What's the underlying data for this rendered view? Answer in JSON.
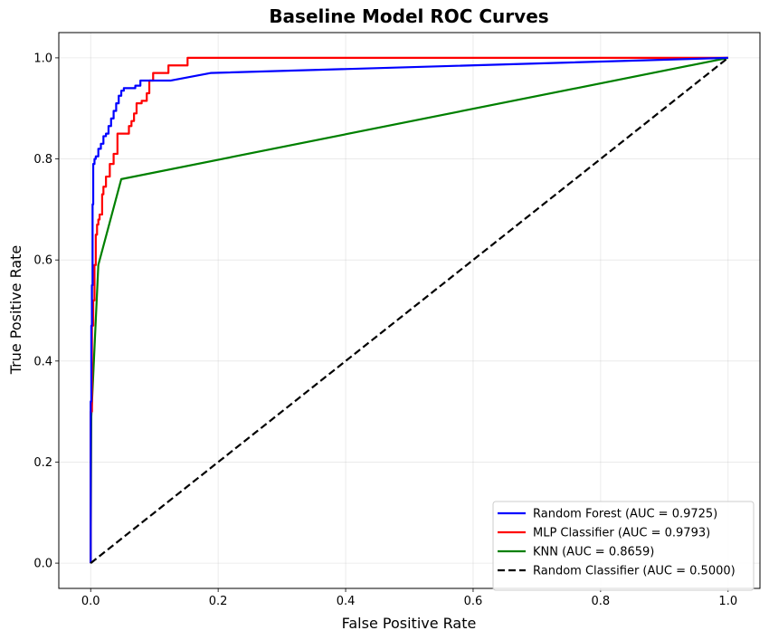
{
  "chart_data": {
    "type": "line",
    "title": "Baseline Model ROC Curves",
    "xlabel": "False Positive Rate",
    "ylabel": "True Positive Rate",
    "xlim": [
      -0.05,
      1.05
    ],
    "ylim": [
      -0.05,
      1.05
    ],
    "xticks": [
      "0.0",
      "0.2",
      "0.4",
      "0.6",
      "0.8",
      "1.0"
    ],
    "yticks": [
      "0.0",
      "0.2",
      "0.4",
      "0.6",
      "0.8",
      "1.0"
    ],
    "grid": true,
    "legend_position": "lower-right",
    "series": [
      {
        "name": "Random Forest (AUC = 0.9725)",
        "color": "#0000ff",
        "dash": "solid",
        "x": [
          0,
          0,
          0.001,
          0.001,
          0.002,
          0.002,
          0.003,
          0.003,
          0.004,
          0.004,
          0.006,
          0.006,
          0.008,
          0.008,
          0.012,
          0.012,
          0.016,
          0.016,
          0.02,
          0.02,
          0.024,
          0.024,
          0.028,
          0.028,
          0.032,
          0.032,
          0.036,
          0.036,
          0.04,
          0.04,
          0.044,
          0.044,
          0.048,
          0.048,
          0.052,
          0.052,
          0.07,
          0.07,
          0.078,
          0.078,
          0.095,
          0.095,
          0.125,
          0.188,
          1.0
        ],
        "y": [
          0,
          0.32,
          0.32,
          0.47,
          0.47,
          0.55,
          0.55,
          0.71,
          0.71,
          0.79,
          0.79,
          0.8,
          0.8,
          0.805,
          0.805,
          0.82,
          0.82,
          0.83,
          0.83,
          0.845,
          0.845,
          0.85,
          0.85,
          0.865,
          0.865,
          0.88,
          0.88,
          0.895,
          0.895,
          0.91,
          0.91,
          0.925,
          0.925,
          0.935,
          0.935,
          0.94,
          0.94,
          0.945,
          0.945,
          0.955,
          0.955,
          0.955,
          0.955,
          0.97,
          1.0
        ]
      },
      {
        "name": "MLP Classifier (AUC = 0.9793)",
        "color": "#ff0000",
        "dash": "solid",
        "x": [
          0,
          0,
          0.002,
          0.002,
          0.004,
          0.004,
          0.006,
          0.006,
          0.008,
          0.008,
          0.01,
          0.01,
          0.012,
          0.012,
          0.014,
          0.014,
          0.018,
          0.018,
          0.02,
          0.02,
          0.024,
          0.024,
          0.03,
          0.03,
          0.036,
          0.036,
          0.042,
          0.042,
          0.06,
          0.06,
          0.064,
          0.064,
          0.068,
          0.068,
          0.072,
          0.072,
          0.08,
          0.08,
          0.088,
          0.088,
          0.092,
          0.092,
          0.098,
          0.098,
          0.122,
          0.122,
          0.152,
          0.152,
          1.0
        ],
        "y": [
          0,
          0.3,
          0.3,
          0.47,
          0.47,
          0.52,
          0.52,
          0.59,
          0.59,
          0.65,
          0.65,
          0.67,
          0.67,
          0.68,
          0.68,
          0.69,
          0.69,
          0.73,
          0.73,
          0.745,
          0.745,
          0.765,
          0.765,
          0.79,
          0.79,
          0.81,
          0.81,
          0.85,
          0.85,
          0.865,
          0.865,
          0.875,
          0.875,
          0.89,
          0.89,
          0.91,
          0.91,
          0.915,
          0.915,
          0.93,
          0.93,
          0.955,
          0.955,
          0.97,
          0.97,
          0.985,
          0.985,
          1.0,
          1.0
        ]
      },
      {
        "name": "KNN (AUC = 0.8659)",
        "color": "#008000",
        "dash": "solid",
        "x": [
          0,
          0.001,
          0.012,
          0.048,
          1.0
        ],
        "y": [
          0,
          0.29,
          0.59,
          0.76,
          1.0
        ]
      },
      {
        "name": "Random Classifier (AUC = 0.5000)",
        "color": "#000000",
        "dash": "dashed",
        "x": [
          0,
          1
        ],
        "y": [
          0,
          1
        ]
      }
    ]
  }
}
